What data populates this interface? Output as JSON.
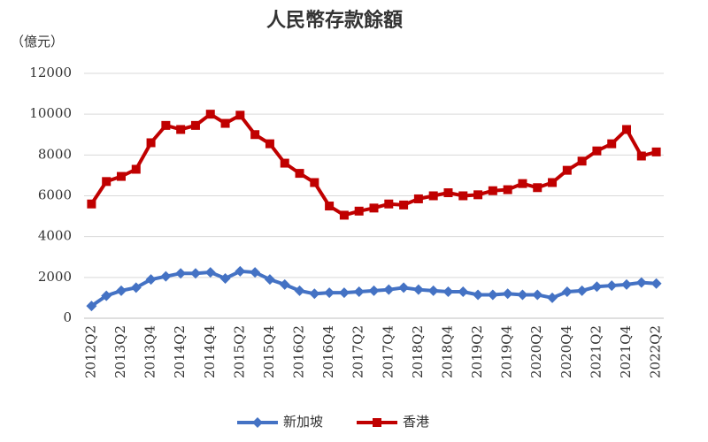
{
  "chart_data": {
    "type": "line",
    "title": "人民幣存款餘額",
    "y_label": "（億元）",
    "categories": [
      "2012Q2",
      null,
      "2013Q2",
      null,
      "2013Q4",
      null,
      "2014Q2",
      null,
      "2014Q4",
      null,
      "2015Q2",
      null,
      "2015Q4",
      null,
      "2016Q2",
      null,
      "2016Q4",
      null,
      "2017Q2",
      null,
      "2017Q4",
      null,
      "2018Q2",
      null,
      "2018Q4",
      null,
      "2019Q2",
      null,
      "2019Q4",
      null,
      "2020Q2",
      null,
      "2020Q4",
      null,
      "2021Q2",
      null,
      "2021Q4",
      null,
      "2022Q2"
    ],
    "series": [
      {
        "name": "新加坡",
        "color": "#4472c4",
        "marker": "diamond",
        "values": [
          600,
          1100,
          1350,
          1500,
          1900,
          2050,
          2200,
          2200,
          2250,
          1950,
          2300,
          2250,
          1900,
          1650,
          1350,
          1200,
          1250,
          1250,
          1300,
          1350,
          1400,
          1500,
          1400,
          1350,
          1300,
          1300,
          1150,
          1150,
          1200,
          1150,
          1150,
          1000,
          1300,
          1350,
          1550,
          1600,
          1650,
          1750,
          1700
        ]
      },
      {
        "name": "香港",
        "color": "#c00000",
        "marker": "square",
        "values": [
          5600,
          6700,
          6950,
          7300,
          8600,
          9450,
          9250,
          9450,
          10000,
          9550,
          9950,
          9000,
          8550,
          7600,
          7100,
          6650,
          5500,
          5050,
          5250,
          5400,
          5600,
          5550,
          5850,
          6000,
          6150,
          6000,
          6050,
          6250,
          6300,
          6600,
          6400,
          6650,
          7250,
          7700,
          8200,
          8550,
          9250,
          7950,
          8150
        ]
      }
    ],
    "ylim": [
      0,
      12000
    ],
    "yticks": [
      0,
      2000,
      4000,
      6000,
      8000,
      10000,
      12000
    ],
    "grid": true,
    "legend": "bottom"
  }
}
